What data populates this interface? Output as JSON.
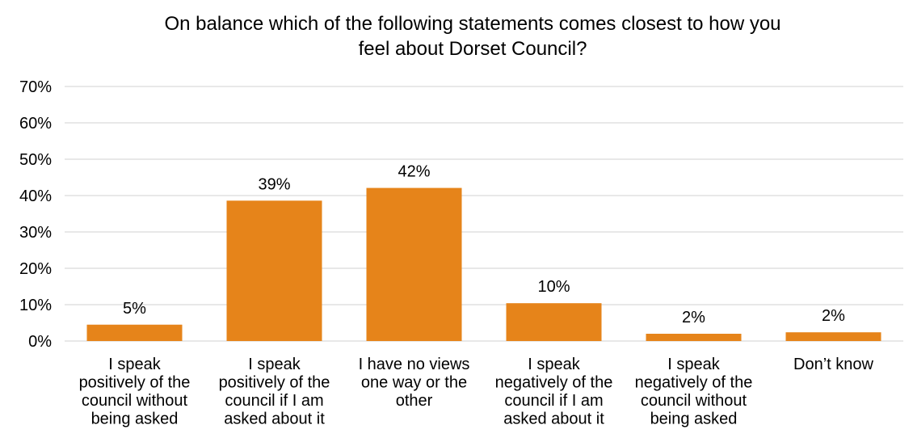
{
  "chart_data": {
    "type": "bar",
    "title": [
      "On balance which of the following statements comes closest to how you",
      "feel about Dorset Council?"
    ],
    "categories": [
      [
        "I speak",
        "positively of the",
        "council without",
        "being asked"
      ],
      [
        "I speak",
        "positively of the",
        "council if I am",
        "asked about it"
      ],
      [
        "I have no views",
        "one way or the",
        "other"
      ],
      [
        "I speak",
        "negatively of the",
        "council if I am",
        "asked about it"
      ],
      [
        "I speak",
        "negatively of the",
        "council without",
        "being asked"
      ],
      [
        "Don’t know"
      ]
    ],
    "values": [
      4.5,
      38.6,
      42.1,
      10.4,
      2.0,
      2.4
    ],
    "data_labels": [
      "5%",
      "39%",
      "42%",
      "10%",
      "2%",
      "2%"
    ],
    "yticks": [
      0,
      10,
      20,
      30,
      40,
      50,
      60,
      70
    ],
    "ytick_labels": [
      "0%",
      "10%",
      "20%",
      "30%",
      "40%",
      "50%",
      "60%",
      "70%"
    ],
    "ylim": [
      0,
      70
    ],
    "xlabel": "",
    "ylabel": "",
    "grid": true,
    "bar_color": "#E6841A",
    "grid_color": "#D9D9D9"
  }
}
